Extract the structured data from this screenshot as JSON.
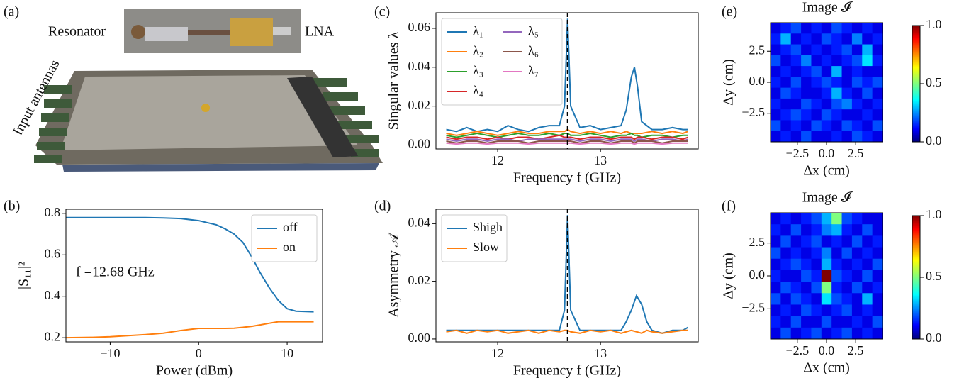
{
  "photo": {
    "label": "(a)",
    "annotations": [
      "Resonator",
      "LNA",
      "Input antennas"
    ]
  },
  "chart_data": [
    {
      "type": "line",
      "label": "(b)",
      "xlabel": "Power (dBm)",
      "ylabel": "|S₁₁|²",
      "annotation": "f =12.68 GHz",
      "x": [
        -15,
        -12,
        -10,
        -8,
        -6,
        -4,
        -2,
        0,
        2,
        3,
        4,
        5,
        6,
        7,
        8,
        9,
        10,
        11,
        13
      ],
      "series": [
        {
          "name": "off",
          "color": "#1f77b4",
          "values": [
            0.78,
            0.78,
            0.78,
            0.78,
            0.78,
            0.778,
            0.775,
            0.765,
            0.745,
            0.725,
            0.7,
            0.66,
            0.59,
            0.51,
            0.44,
            0.38,
            0.34,
            0.328,
            0.325
          ]
        },
        {
          "name": "on",
          "color": "#ff7f0e",
          "values": [
            0.2,
            0.202,
            0.205,
            0.21,
            0.215,
            0.222,
            0.235,
            0.245,
            0.245,
            0.245,
            0.246,
            0.25,
            0.255,
            0.262,
            0.27,
            0.277,
            0.277,
            0.277,
            0.277
          ]
        }
      ],
      "xlim": [
        -15,
        14
      ],
      "ylim": [
        0.18,
        0.82
      ],
      "xticks": [
        {
          "value": -10,
          "label": "−10"
        },
        0,
        10
      ],
      "yticks": [
        0.2,
        0.4,
        0.6,
        0.8
      ],
      "legend": "upper right",
      "legend_columns": 1
    },
    {
      "type": "line",
      "label": "(c)",
      "xlabel": "Frequency f (GHz)",
      "ylabel": "Singular values λ",
      "vline": 12.68,
      "x": [
        11.5,
        11.6,
        11.7,
        11.8,
        11.9,
        12.0,
        12.1,
        12.2,
        12.3,
        12.4,
        12.5,
        12.6,
        12.65,
        12.68,
        12.71,
        12.8,
        12.9,
        13.0,
        13.1,
        13.2,
        13.25,
        13.3,
        13.33,
        13.36,
        13.4,
        13.5,
        13.6,
        13.7,
        13.8,
        13.85
      ],
      "series": [
        {
          "name": "λ₁",
          "color": "#1f77b4",
          "values": [
            0.008,
            0.007,
            0.009,
            0.007,
            0.008,
            0.007,
            0.01,
            0.008,
            0.007,
            0.009,
            0.01,
            0.01,
            0.02,
            0.065,
            0.02,
            0.009,
            0.01,
            0.008,
            0.009,
            0.01,
            0.018,
            0.035,
            0.04,
            0.03,
            0.012,
            0.008,
            0.008,
            0.009,
            0.008,
            0.008
          ]
        },
        {
          "name": "λ₂",
          "color": "#ff7f0e",
          "values": [
            0.006,
            0.005,
            0.006,
            0.007,
            0.006,
            0.005,
            0.006,
            0.007,
            0.006,
            0.006,
            0.007,
            0.007,
            0.007,
            0.008,
            0.007,
            0.006,
            0.007,
            0.006,
            0.007,
            0.006,
            0.007,
            0.006,
            0.006,
            0.006,
            0.006,
            0.007,
            0.006,
            0.007,
            0.006,
            0.007
          ]
        },
        {
          "name": "λ₃",
          "color": "#2ca02c",
          "values": [
            0.005,
            0.004,
            0.005,
            0.006,
            0.005,
            0.004,
            0.005,
            0.006,
            0.005,
            0.005,
            0.006,
            0.005,
            0.006,
            0.006,
            0.005,
            0.005,
            0.006,
            0.005,
            0.004,
            0.005,
            0.005,
            0.006,
            0.005,
            0.005,
            0.004,
            0.005,
            0.005,
            0.004,
            0.005,
            0.005
          ]
        },
        {
          "name": "λ₄",
          "color": "#d62728",
          "values": [
            0.004,
            0.003,
            0.004,
            0.004,
            0.003,
            0.004,
            0.003,
            0.004,
            0.004,
            0.003,
            0.004,
            0.005,
            0.004,
            0.004,
            0.004,
            0.003,
            0.004,
            0.004,
            0.003,
            0.004,
            0.004,
            0.004,
            0.003,
            0.004,
            0.004,
            0.003,
            0.004,
            0.004,
            0.003,
            0.004
          ]
        },
        {
          "name": "λ₅",
          "color": "#9467bd",
          "values": [
            0.003,
            0.002,
            0.003,
            0.003,
            0.002,
            0.003,
            0.003,
            0.002,
            0.003,
            0.003,
            0.003,
            0.003,
            0.003,
            0.003,
            0.003,
            0.002,
            0.003,
            0.003,
            0.002,
            0.003,
            0.003,
            0.003,
            0.002,
            0.003,
            0.003,
            0.002,
            0.003,
            0.003,
            0.002,
            0.003
          ]
        },
        {
          "name": "λ₆",
          "color": "#8c564b",
          "values": [
            0.002,
            0.001,
            0.002,
            0.002,
            0.001,
            0.002,
            0.002,
            0.002,
            0.001,
            0.002,
            0.002,
            0.002,
            0.002,
            0.002,
            0.002,
            0.001,
            0.002,
            0.002,
            0.001,
            0.002,
            0.002,
            0.002,
            0.001,
            0.002,
            0.002,
            0.002,
            0.001,
            0.002,
            0.002,
            0.002
          ]
        },
        {
          "name": "λ₇",
          "color": "#e377c2",
          "values": [
            0.001,
            0.0005,
            0.001,
            0.001,
            0.0005,
            0.001,
            0.001,
            0.001,
            0.0005,
            0.001,
            0.001,
            0.001,
            0.001,
            0.001,
            0.001,
            0.0005,
            0.001,
            0.001,
            0.0005,
            0.001,
            0.001,
            0.001,
            0.0005,
            0.001,
            0.001,
            0.001,
            0.0005,
            0.001,
            0.001,
            0.001
          ]
        }
      ],
      "xlim": [
        11.4,
        13.95
      ],
      "ylim": [
        -0.002,
        0.068
      ],
      "xticks": [
        12,
        13
      ],
      "yticks": [
        {
          "value": 0,
          "label": "0.00"
        },
        {
          "value": 0.02,
          "label": "0.02"
        },
        {
          "value": 0.04,
          "label": "0.04"
        },
        {
          "value": 0.06,
          "label": "0.06"
        }
      ],
      "legend": "upper left",
      "legend_columns": 2
    },
    {
      "type": "line",
      "label": "(d)",
      "xlabel": "Frequency f (GHz)",
      "ylabel": "Asymmetry 𝒜",
      "vline": 12.68,
      "x": [
        11.5,
        11.6,
        11.7,
        11.8,
        11.9,
        12.0,
        12.1,
        12.2,
        12.3,
        12.4,
        12.5,
        12.6,
        12.65,
        12.68,
        12.71,
        12.8,
        12.9,
        13.0,
        13.1,
        13.2,
        13.25,
        13.3,
        13.35,
        13.4,
        13.45,
        13.5,
        13.6,
        13.7,
        13.8,
        13.85
      ],
      "series": [
        {
          "name": "Shigh",
          "color": "#1f77b4",
          "values": [
            0.003,
            0.003,
            0.003,
            0.003,
            0.003,
            0.003,
            0.003,
            0.003,
            0.003,
            0.003,
            0.003,
            0.003,
            0.01,
            0.043,
            0.01,
            0.003,
            0.003,
            0.003,
            0.003,
            0.003,
            0.006,
            0.01,
            0.015,
            0.012,
            0.006,
            0.003,
            0.002,
            0.003,
            0.003,
            0.004
          ]
        },
        {
          "name": "Slow",
          "color": "#ff7f0e",
          "values": [
            0.0025,
            0.003,
            0.002,
            0.003,
            0.0025,
            0.003,
            0.002,
            0.0025,
            0.003,
            0.002,
            0.003,
            0.0025,
            0.003,
            0.003,
            0.0025,
            0.002,
            0.003,
            0.0025,
            0.003,
            0.002,
            0.0025,
            0.003,
            0.0025,
            0.002,
            0.003,
            0.0025,
            0.002,
            0.0025,
            0.003,
            0.003
          ]
        }
      ],
      "xlim": [
        11.4,
        13.95
      ],
      "ylim": [
        -0.001,
        0.045
      ],
      "xticks": [
        12,
        13
      ],
      "yticks": [
        {
          "value": 0,
          "label": "0.00"
        },
        {
          "value": 0.02,
          "label": "0.02"
        },
        {
          "value": 0.04,
          "label": "0.04"
        }
      ],
      "legend": "upper left",
      "legend_columns": 1
    },
    {
      "type": "heatmap",
      "label": "(e)",
      "title": "Image 𝓘",
      "xlabel": "Δx (cm)",
      "ylabel": "Δy (cm)",
      "xlim": [
        -4.8,
        4.8
      ],
      "ylim": [
        -4.8,
        4.8
      ],
      "clim": [
        0,
        1
      ],
      "xticks": [
        {
          "value": -2.5,
          "label": "−2.5"
        },
        {
          "value": 0,
          "label": "0.0"
        },
        2.5
      ],
      "yticks": [
        2.5,
        {
          "value": 0,
          "label": "0.0"
        },
        {
          "value": -2.5,
          "label": "−2.5"
        }
      ],
      "cticks": [
        {
          "value": 0,
          "label": "0.0"
        },
        0.5,
        {
          "value": 1,
          "label": "1.0"
        }
      ],
      "z": [
        [
          0.1,
          0.15,
          0.2,
          0.1,
          0.15,
          0.1,
          0.2,
          0.15,
          0.1,
          0.15,
          0.1
        ],
        [
          0.15,
          0.3,
          0.1,
          0.15,
          0.1,
          0.2,
          0.15,
          0.1,
          0.25,
          0.1,
          0.15
        ],
        [
          0.1,
          0.15,
          0.2,
          0.1,
          0.15,
          0.1,
          0.15,
          0.2,
          0.1,
          0.3,
          0.1
        ],
        [
          0.2,
          0.1,
          0.15,
          0.25,
          0.1,
          0.15,
          0.1,
          0.15,
          0.2,
          0.35,
          0.15
        ],
        [
          0.1,
          0.15,
          0.1,
          0.15,
          0.2,
          0.1,
          0.3,
          0.1,
          0.15,
          0.1,
          0.1
        ],
        [
          0.15,
          0.1,
          0.2,
          0.1,
          0.15,
          0.2,
          0.15,
          0.1,
          0.2,
          0.15,
          0.2
        ],
        [
          0.1,
          0.2,
          0.15,
          0.1,
          0.1,
          0.15,
          0.3,
          0.15,
          0.1,
          0.2,
          0.1
        ],
        [
          0.15,
          0.1,
          0.1,
          0.2,
          0.15,
          0.1,
          0.2,
          0.25,
          0.15,
          0.1,
          0.15
        ],
        [
          0.1,
          0.15,
          0.2,
          0.15,
          0.1,
          0.2,
          0.15,
          0.1,
          0.1,
          0.15,
          0.1
        ],
        [
          0.2,
          0.1,
          0.15,
          0.1,
          0.2,
          0.15,
          0.1,
          0.2,
          0.15,
          0.1,
          0.2
        ],
        [
          0.1,
          0.15,
          0.1,
          0.2,
          0.1,
          0.1,
          0.15,
          0.1,
          0.2,
          0.15,
          0.1
        ]
      ]
    },
    {
      "type": "heatmap",
      "label": "(f)",
      "title": "Image 𝓘",
      "xlabel": "Δx (cm)",
      "ylabel": "Δy (cm)",
      "xlim": [
        -4.8,
        4.8
      ],
      "ylim": [
        -4.8,
        4.8
      ],
      "clim": [
        0,
        1
      ],
      "xticks": [
        {
          "value": -2.5,
          "label": "−2.5"
        },
        {
          "value": 0,
          "label": "0.0"
        },
        2.5
      ],
      "yticks": [
        2.5,
        {
          "value": 0,
          "label": "0.0"
        },
        {
          "value": -2.5,
          "label": "−2.5"
        }
      ],
      "cticks": [
        {
          "value": 0,
          "label": "0.0"
        },
        0.5,
        {
          "value": 1,
          "label": "1.0"
        }
      ],
      "z": [
        [
          0.1,
          0.15,
          0.1,
          0.15,
          0.2,
          0.3,
          0.5,
          0.2,
          0.15,
          0.1,
          0.1
        ],
        [
          0.15,
          0.1,
          0.2,
          0.1,
          0.15,
          0.25,
          0.3,
          0.15,
          0.1,
          0.2,
          0.1
        ],
        [
          0.1,
          0.2,
          0.1,
          0.15,
          0.2,
          0.1,
          0.15,
          0.1,
          0.2,
          0.1,
          0.15
        ],
        [
          0.2,
          0.1,
          0.15,
          0.1,
          0.15,
          0.25,
          0.1,
          0.2,
          0.1,
          0.15,
          0.1
        ],
        [
          0.1,
          0.15,
          0.2,
          0.15,
          0.1,
          0.3,
          0.15,
          0.1,
          0.15,
          0.1,
          0.2
        ],
        [
          0.15,
          0.1,
          0.1,
          0.2,
          0.15,
          1.0,
          0.2,
          0.15,
          0.1,
          0.2,
          0.1
        ],
        [
          0.1,
          0.2,
          0.15,
          0.1,
          0.2,
          0.5,
          0.15,
          0.1,
          0.2,
          0.1,
          0.15
        ],
        [
          0.2,
          0.1,
          0.2,
          0.15,
          0.1,
          0.35,
          0.2,
          0.15,
          0.1,
          0.3,
          0.1
        ],
        [
          0.1,
          0.15,
          0.1,
          0.2,
          0.15,
          0.1,
          0.15,
          0.2,
          0.1,
          0.15,
          0.1
        ],
        [
          0.15,
          0.1,
          0.2,
          0.1,
          0.1,
          0.2,
          0.1,
          0.1,
          0.15,
          0.1,
          0.2
        ],
        [
          0.1,
          0.2,
          0.1,
          0.15,
          0.2,
          0.1,
          0.15,
          0.2,
          0.1,
          0.15,
          0.1
        ]
      ]
    }
  ]
}
